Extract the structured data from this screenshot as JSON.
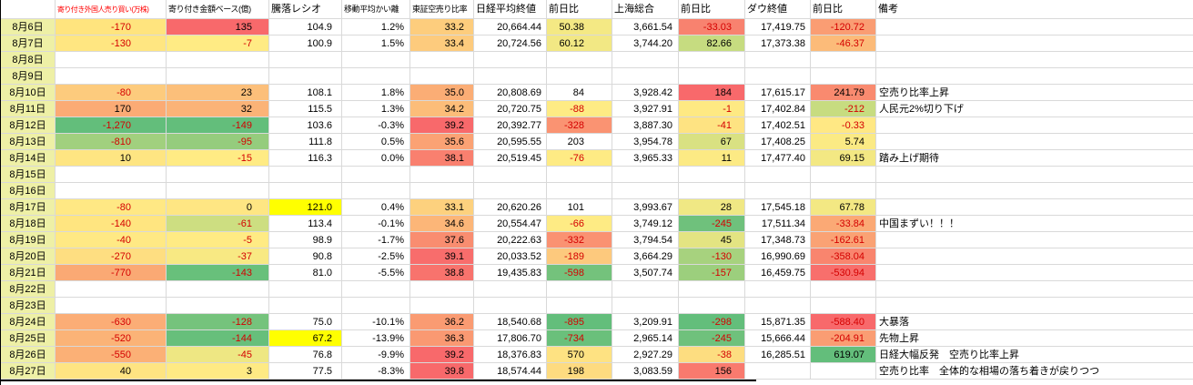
{
  "header": {
    "columns": [
      {
        "label": ""
      },
      {
        "label": "寄り付き外国人売り買い(万株)",
        "color": "#ff0000"
      },
      {
        "label": "寄り付き金額ベース(億)"
      },
      {
        "label": "騰落レシオ"
      },
      {
        "label": "移動平均かい離"
      },
      {
        "label": "東証空売り比率"
      },
      {
        "label": "日経平均終値"
      },
      {
        "label": "前日比"
      },
      {
        "label": "上海総合"
      },
      {
        "label": "前日比"
      },
      {
        "label": "ダウ終値"
      },
      {
        "label": "前日比"
      },
      {
        "label": "備考"
      }
    ]
  },
  "colors": {
    "date_bg": "#eef0a6",
    "grid": "#d9d9d9",
    "negative_text": "#d40000",
    "scale_red": "#f8696b",
    "scale_yellow": "#ffeb84",
    "scale_green": "#63be7b",
    "manual_highlight": "#ffff00"
  },
  "rows": [
    {
      "date": "8月6日",
      "remark": "",
      "cells": [
        {
          "v": "-170",
          "bg": "#ffe47e"
        },
        {
          "v": "135",
          "bg": "#f8696b"
        },
        {
          "v": "104.9",
          "bg": null
        },
        {
          "v": "1.2%",
          "bg": null
        },
        {
          "v": "33.2",
          "bg": "#fdcd7d"
        },
        {
          "v": "20,664.44",
          "bg": null
        },
        {
          "v": "50.38",
          "bg": "#f4e984"
        },
        {
          "v": "3,661.54",
          "bg": null
        },
        {
          "v": "-33.03",
          "bg": "#f8826f"
        },
        {
          "v": "17,419.75",
          "bg": null
        },
        {
          "v": "-120.72",
          "bg": "#fa9d73"
        }
      ]
    },
    {
      "date": "8月7日",
      "remark": "",
      "cells": [
        {
          "v": "-130",
          "bg": "#ffe681"
        },
        {
          "v": "-7",
          "bg": "#ffeb84"
        },
        {
          "v": "100.9",
          "bg": null
        },
        {
          "v": "1.5%",
          "bg": null
        },
        {
          "v": "33.4",
          "bg": "#fdcb7d"
        },
        {
          "v": "20,724.56",
          "bg": null
        },
        {
          "v": "60.12",
          "bg": "#f2e884"
        },
        {
          "v": "3,744.20",
          "bg": null
        },
        {
          "v": "82.66",
          "bg": "#c6dc80"
        },
        {
          "v": "17,373.38",
          "bg": null
        },
        {
          "v": "-46.37",
          "bg": "#fcbb79"
        }
      ]
    },
    {
      "date": "8月8日",
      "remark": "",
      "cells": []
    },
    {
      "date": "8月9日",
      "remark": "",
      "cells": []
    },
    {
      "date": "8月10日",
      "remark": "空売り比率上昇",
      "cells": [
        {
          "v": "-80",
          "bg": "#fdcb7d"
        },
        {
          "v": "23",
          "bg": "#fcbf7a"
        },
        {
          "v": "108.1",
          "bg": null
        },
        {
          "v": "1.8%",
          "bg": null
        },
        {
          "v": "35.0",
          "bg": "#fbad75"
        },
        {
          "v": "20,808.69",
          "bg": null
        },
        {
          "v": "84",
          "bg": null
        },
        {
          "v": "3,928.42",
          "bg": null
        },
        {
          "v": "184",
          "bg": "#f8696b"
        },
        {
          "v": "17,615.17",
          "bg": null
        },
        {
          "v": "241.79",
          "bg": "#f98a6f"
        }
      ]
    },
    {
      "date": "8月11日",
      "remark": "人民元2%切り下げ",
      "cells": [
        {
          "v": "170",
          "bg": "#fbab75"
        },
        {
          "v": "32",
          "bg": "#fbb377"
        },
        {
          "v": "115.5",
          "bg": null
        },
        {
          "v": "1.3%",
          "bg": null
        },
        {
          "v": "34.2",
          "bg": "#fcbd79"
        },
        {
          "v": "20,720.75",
          "bg": null
        },
        {
          "v": "-88",
          "bg": "#feeb84"
        },
        {
          "v": "3,927.91",
          "bg": null
        },
        {
          "v": "-1",
          "bg": "#fee983"
        },
        {
          "v": "17,402.84",
          "bg": null
        },
        {
          "v": "-212",
          "bg": "#c7dc80"
        }
      ]
    },
    {
      "date": "8月12日",
      "remark": "",
      "cells": [
        {
          "v": "-1,270",
          "bg": "#63be7b"
        },
        {
          "v": "-149",
          "bg": "#63be7b"
        },
        {
          "v": "103.6",
          "bg": null
        },
        {
          "v": "-0.3%",
          "bg": null
        },
        {
          "v": "39.2",
          "bg": "#f8696b"
        },
        {
          "v": "20,392.77",
          "bg": null
        },
        {
          "v": "-328",
          "bg": "#fa9372"
        },
        {
          "v": "3,887.30",
          "bg": null
        },
        {
          "v": "-41",
          "bg": "#fee382"
        },
        {
          "v": "17,402.51",
          "bg": null
        },
        {
          "v": "-0.33",
          "bg": "#ffe884"
        }
      ]
    },
    {
      "date": "8月13日",
      "remark": "",
      "cells": [
        {
          "v": "-810",
          "bg": "#a1d07e"
        },
        {
          "v": "-95",
          "bg": "#95cc7d"
        },
        {
          "v": "111.8",
          "bg": null
        },
        {
          "v": "0.5%",
          "bg": null
        },
        {
          "v": "35.6",
          "bg": "#fba274"
        },
        {
          "v": "20,595.55",
          "bg": null
        },
        {
          "v": "203",
          "bg": null
        },
        {
          "v": "3,954.78",
          "bg": null
        },
        {
          "v": "67",
          "bg": "#d9e182"
        },
        {
          "v": "17,408.25",
          "bg": null
        },
        {
          "v": "5.74",
          "bg": "#fbea84"
        }
      ]
    },
    {
      "date": "8月14日",
      "remark": "踏み上げ期待",
      "cells": [
        {
          "v": "10",
          "bg": "#fee582"
        },
        {
          "v": "-15",
          "bg": "#ffeb84"
        },
        {
          "v": "116.3",
          "bg": null
        },
        {
          "v": "0.0%",
          "bg": null
        },
        {
          "v": "38.1",
          "bg": "#f9806f"
        },
        {
          "v": "20,519.45",
          "bg": null
        },
        {
          "v": "-76",
          "bg": "#feeb84"
        },
        {
          "v": "3,965.33",
          "bg": null
        },
        {
          "v": "11",
          "bg": "#fcea84"
        },
        {
          "v": "17,477.40",
          "bg": null
        },
        {
          "v": "69.15",
          "bg": "#f3e883"
        }
      ]
    },
    {
      "date": "8月15日",
      "remark": "",
      "cells": []
    },
    {
      "date": "8月16日",
      "remark": "",
      "cells": []
    },
    {
      "date": "8月17日",
      "remark": "",
      "cells": [
        {
          "v": "-80",
          "bg": "#ffe884"
        },
        {
          "v": "0",
          "bg": "#fee683"
        },
        {
          "v": "121.0",
          "bg": "#ffff00"
        },
        {
          "v": "0.4%",
          "bg": null
        },
        {
          "v": "33.1",
          "bg": "#fdd17e"
        },
        {
          "v": "20,620.26",
          "bg": null
        },
        {
          "v": "101",
          "bg": null
        },
        {
          "v": "3,993.67",
          "bg": null
        },
        {
          "v": "28",
          "bg": "#f0e884"
        },
        {
          "v": "17,545.18",
          "bg": null
        },
        {
          "v": "67.78",
          "bg": "#f3e883"
        }
      ]
    },
    {
      "date": "8月18日",
      "remark": "中国まずい！！！",
      "cells": [
        {
          "v": "-140",
          "bg": "#ffe580"
        },
        {
          "v": "-61",
          "bg": "#cdde81"
        },
        {
          "v": "113.4",
          "bg": null
        },
        {
          "v": "-0.1%",
          "bg": null
        },
        {
          "v": "34.6",
          "bg": "#fcb678"
        },
        {
          "v": "20,554.47",
          "bg": null
        },
        {
          "v": "-66",
          "bg": "#feeb84"
        },
        {
          "v": "3,749.12",
          "bg": null
        },
        {
          "v": "-245",
          "bg": "#6fc17c"
        },
        {
          "v": "17,511.34",
          "bg": null
        },
        {
          "v": "-33.84",
          "bg": "#fba975"
        }
      ]
    },
    {
      "date": "8月19日",
      "remark": "",
      "cells": [
        {
          "v": "-40",
          "bg": "#ffe984"
        },
        {
          "v": "-5",
          "bg": "#ffeb84"
        },
        {
          "v": "98.9",
          "bg": null
        },
        {
          "v": "-1.7%",
          "bg": null
        },
        {
          "v": "37.6",
          "bg": "#f98d70"
        },
        {
          "v": "20,222.63",
          "bg": null
        },
        {
          "v": "-332",
          "bg": "#fa9272"
        },
        {
          "v": "3,794.54",
          "bg": null
        },
        {
          "v": "45",
          "bg": "#e3e482"
        },
        {
          "v": "17,348.73",
          "bg": null
        },
        {
          "v": "-162.61",
          "bg": "#faa274"
        }
      ]
    },
    {
      "date": "8月20日",
      "remark": "",
      "cells": [
        {
          "v": "-270",
          "bg": "#fede81"
        },
        {
          "v": "-37",
          "bg": "#f8e983"
        },
        {
          "v": "90.8",
          "bg": null
        },
        {
          "v": "-2.5%",
          "bg": null
        },
        {
          "v": "39.1",
          "bg": "#f86d6c"
        },
        {
          "v": "20,033.52",
          "bg": null
        },
        {
          "v": "-189",
          "bg": "#fdc97d"
        },
        {
          "v": "3,664.29",
          "bg": null
        },
        {
          "v": "-130",
          "bg": "#a7d27e"
        },
        {
          "v": "16,990.69",
          "bg": null
        },
        {
          "v": "-358.04",
          "bg": "#f9856e"
        }
      ]
    },
    {
      "date": "8月21日",
      "remark": "",
      "cells": [
        {
          "v": "-770",
          "bg": "#faa974"
        },
        {
          "v": "-143",
          "bg": "#68c07b"
        },
        {
          "v": "81.0",
          "bg": null
        },
        {
          "v": "-5.5%",
          "bg": null
        },
        {
          "v": "38.8",
          "bg": "#f8736d"
        },
        {
          "v": "19,435.83",
          "bg": null
        },
        {
          "v": "-598",
          "bg": "#74c27c"
        },
        {
          "v": "3,507.74",
          "bg": null
        },
        {
          "v": "-157",
          "bg": "#9ccf7d"
        },
        {
          "v": "16,459.75",
          "bg": null
        },
        {
          "v": "-530.94",
          "bg": "#f86f6c"
        }
      ]
    },
    {
      "date": "8月22日",
      "remark": "",
      "cells": []
    },
    {
      "date": "8月23日",
      "remark": "",
      "cells": []
    },
    {
      "date": "8月24日",
      "remark": "大暴落",
      "cells": [
        {
          "v": "-630",
          "bg": "#fbad76"
        },
        {
          "v": "-128",
          "bg": "#75c37c"
        },
        {
          "v": "75.0",
          "bg": null
        },
        {
          "v": "-10.1%",
          "bg": null
        },
        {
          "v": "36.2",
          "bg": "#fa9b72"
        },
        {
          "v": "18,540.68",
          "bg": null
        },
        {
          "v": "-895",
          "bg": "#63be7b"
        },
        {
          "v": "3,209.91",
          "bg": null
        },
        {
          "v": "-298",
          "bg": "#63be7b"
        },
        {
          "v": "15,871.35",
          "bg": null
        },
        {
          "v": "-588.40",
          "bg": "#f8696b"
        }
      ]
    },
    {
      "date": "8月25日",
      "remark": "先物上昇",
      "cells": [
        {
          "v": "-520",
          "bg": "#fbb377"
        },
        {
          "v": "-144",
          "bg": "#67bf7b"
        },
        {
          "v": "67.2",
          "bg": "#ffff00"
        },
        {
          "v": "-13.9%",
          "bg": null
        },
        {
          "v": "36.3",
          "bg": "#fa9972"
        },
        {
          "v": "17,806.70",
          "bg": null
        },
        {
          "v": "-734",
          "bg": "#6ac07b"
        },
        {
          "v": "2,965.14",
          "bg": null
        },
        {
          "v": "-245",
          "bg": "#6fc17c"
        },
        {
          "v": "15,666.44",
          "bg": null
        },
        {
          "v": "-204.91",
          "bg": "#fa9d73"
        }
      ]
    },
    {
      "date": "8月26日",
      "remark": "日経大幅反発　空売り比率上昇",
      "cells": [
        {
          "v": "-550",
          "bg": "#fbb076"
        },
        {
          "v": "-45",
          "bg": "#eee783"
        },
        {
          "v": "76.8",
          "bg": null
        },
        {
          "v": "-9.9%",
          "bg": null
        },
        {
          "v": "39.2",
          "bg": "#f8696b"
        },
        {
          "v": "18,376.83",
          "bg": null
        },
        {
          "v": "570",
          "bg": "#fee282"
        },
        {
          "v": "2,927.29",
          "bg": null
        },
        {
          "v": "-38",
          "bg": "#fddd80"
        },
        {
          "v": "16,285.51",
          "bg": null
        },
        {
          "v": "619.07",
          "bg": "#63be7b"
        }
      ]
    },
    {
      "date": "8月27日",
      "remark": "空売り比率　全体的な相場の落ち着きが戻りつつ",
      "cells": [
        {
          "v": "40",
          "bg": "#fee482"
        },
        {
          "v": "3",
          "bg": "#feea84"
        },
        {
          "v": "77.5",
          "bg": null
        },
        {
          "v": "-8.3%",
          "bg": null
        },
        {
          "v": "39.8",
          "bg": "#f8696b"
        },
        {
          "v": "18,574.44",
          "bg": null
        },
        {
          "v": "198",
          "bg": "#fddb80"
        },
        {
          "v": "3,083.59",
          "bg": null
        },
        {
          "v": "156",
          "bg": "#f97a6e"
        },
        {
          "v": "",
          "bg": null
        },
        {
          "v": "",
          "bg": null
        }
      ]
    }
  ]
}
